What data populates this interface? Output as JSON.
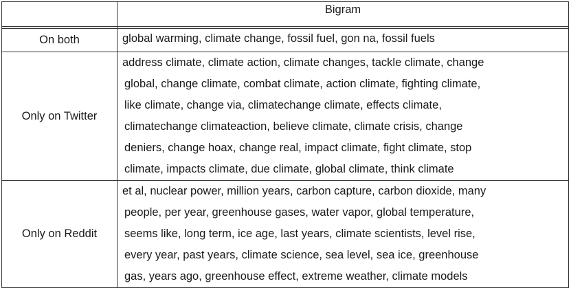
{
  "header": {
    "col1": "",
    "col2": "Bigram"
  },
  "rows": [
    {
      "label": "On both",
      "lines": [
        "global warming, climate change, fossil fuel, gon na, fossil fuels"
      ]
    },
    {
      "label": "Only on Twitter",
      "lines": [
        "address climate, climate action, climate changes, tackle climate, change",
        "global, change climate, combat climate, action climate, fighting climate,",
        "like climate, change via, climatechange climate, effects climate,",
        "climatechange climateaction, believe climate, climate crisis, change",
        "deniers, change hoax, change real, impact climate, fight climate, stop",
        "climate, impacts climate, due climate, global climate, think climate"
      ]
    },
    {
      "label": "Only on Reddit",
      "lines": [
        "et al, nuclear power, million years, carbon capture, carbon dioxide, many",
        "people, per year, greenhouse gases, water vapor, global temperature,",
        "seems like, long term, ice age, last years, climate scientists, level rise,",
        "every year, past years, climate science, sea level, sea ice, greenhouse",
        "gas, years ago, greenhouse effect, extreme weather, climate models"
      ]
    }
  ]
}
